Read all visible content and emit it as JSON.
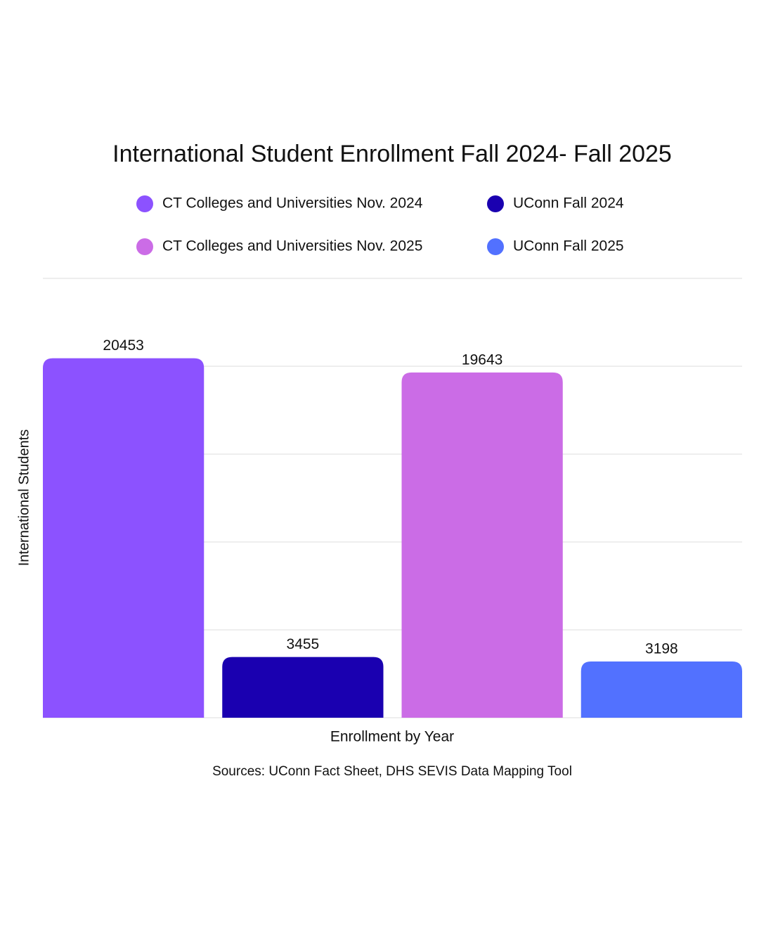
{
  "chart_data": {
    "type": "bar",
    "title": "International Student Enrollment Fall 2024- Fall 2025",
    "x_label": "Enrollment by Year",
    "y_label": "International Students",
    "source": "Sources: UConn Fact Sheet, DHS SEVIS Data Mapping Tool",
    "categories": [
      null
    ],
    "series": [
      {
        "name": "CT Colleges and Universities Nov. 2024",
        "color": "#8c52ff",
        "values": [
          20453
        ]
      },
      {
        "name": "UConn Fall 2024",
        "color": "#1a00b0",
        "values": [
          3455
        ]
      },
      {
        "name": "CT Colleges and Universities Nov. 2025",
        "color": "#cb6ce6",
        "values": [
          19643
        ]
      },
      {
        "name": "UConn Fall 2025",
        "color": "#5271ff",
        "values": [
          3198
        ]
      }
    ],
    "ylim": [
      0,
      25000
    ],
    "yticks": [
      0,
      5000,
      10000,
      15000,
      20000,
      25000
    ],
    "grid": true
  }
}
